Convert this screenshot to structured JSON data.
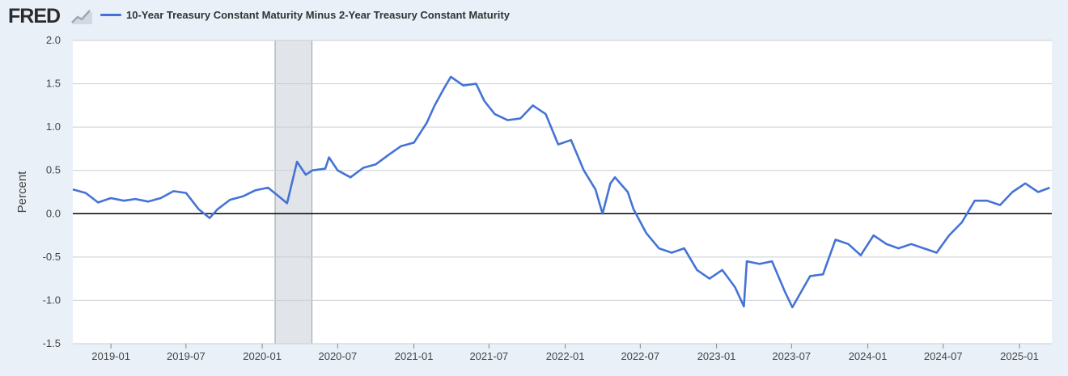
{
  "header": {
    "logo_text": "FRED",
    "logo_icon": "chart-line-icon"
  },
  "colors": {
    "series": "#4573d5",
    "background": "#e9f0f8",
    "plot": "#ffffff",
    "recession": "#e1e5ea",
    "zero_line": "#000000",
    "grid": "#c8cdd3"
  },
  "chart_data": {
    "type": "line",
    "title": "",
    "xlabel": "",
    "ylabel": "Percent",
    "ylim": [
      -1.5,
      2.0
    ],
    "xlim": [
      "2018-10-01",
      "2025-03-20"
    ],
    "yticks": [
      "2.0",
      "1.5",
      "1.0",
      "0.5",
      "0.0",
      "-0.5",
      "-1.0",
      "-1.5"
    ],
    "xticks": [
      "2019-01",
      "2019-07",
      "2020-01",
      "2020-07",
      "2021-01",
      "2021-07",
      "2022-01",
      "2022-07",
      "2023-01",
      "2023-07",
      "2024-01",
      "2024-07",
      "2025-01"
    ],
    "grid": true,
    "legend_position": "top-left",
    "recessions": [
      [
        "2020-02-01",
        "2020-04-30"
      ]
    ],
    "series": [
      {
        "name": "10-Year Treasury Constant Maturity Minus 2-Year Treasury Constant Maturity",
        "points": [
          [
            "2018-10-01",
            0.28
          ],
          [
            "2018-11-01",
            0.24
          ],
          [
            "2018-12-01",
            0.13
          ],
          [
            "2019-01-01",
            0.18
          ],
          [
            "2019-02-01",
            0.15
          ],
          [
            "2019-03-01",
            0.17
          ],
          [
            "2019-04-01",
            0.14
          ],
          [
            "2019-05-01",
            0.18
          ],
          [
            "2019-06-01",
            0.26
          ],
          [
            "2019-07-01",
            0.24
          ],
          [
            "2019-08-01",
            0.05
          ],
          [
            "2019-08-27",
            -0.05
          ],
          [
            "2019-09-15",
            0.05
          ],
          [
            "2019-10-15",
            0.16
          ],
          [
            "2019-11-15",
            0.2
          ],
          [
            "2019-12-15",
            0.27
          ],
          [
            "2020-01-15",
            0.3
          ],
          [
            "2020-02-15",
            0.18
          ],
          [
            "2020-03-01",
            0.12
          ],
          [
            "2020-03-15",
            0.4
          ],
          [
            "2020-03-25",
            0.6
          ],
          [
            "2020-04-15",
            0.45
          ],
          [
            "2020-05-01",
            0.5
          ],
          [
            "2020-06-01",
            0.52
          ],
          [
            "2020-06-10",
            0.65
          ],
          [
            "2020-07-01",
            0.5
          ],
          [
            "2020-08-01",
            0.42
          ],
          [
            "2020-09-01",
            0.53
          ],
          [
            "2020-10-01",
            0.57
          ],
          [
            "2020-11-01",
            0.68
          ],
          [
            "2020-12-01",
            0.78
          ],
          [
            "2021-01-01",
            0.82
          ],
          [
            "2021-02-01",
            1.05
          ],
          [
            "2021-02-20",
            1.25
          ],
          [
            "2021-03-15",
            1.45
          ],
          [
            "2021-03-31",
            1.58
          ],
          [
            "2021-04-30",
            1.48
          ],
          [
            "2021-05-31",
            1.5
          ],
          [
            "2021-06-20",
            1.3
          ],
          [
            "2021-07-15",
            1.15
          ],
          [
            "2021-08-15",
            1.08
          ],
          [
            "2021-09-15",
            1.1
          ],
          [
            "2021-10-15",
            1.25
          ],
          [
            "2021-11-15",
            1.15
          ],
          [
            "2021-12-15",
            0.8
          ],
          [
            "2022-01-15",
            0.85
          ],
          [
            "2022-02-15",
            0.5
          ],
          [
            "2022-03-15",
            0.28
          ],
          [
            "2022-04-01",
            0.0
          ],
          [
            "2022-04-20",
            0.35
          ],
          [
            "2022-05-01",
            0.42
          ],
          [
            "2022-06-01",
            0.25
          ],
          [
            "2022-06-15",
            0.05
          ],
          [
            "2022-07-15",
            -0.22
          ],
          [
            "2022-08-15",
            -0.4
          ],
          [
            "2022-09-15",
            -0.45
          ],
          [
            "2022-10-15",
            -0.4
          ],
          [
            "2022-11-15",
            -0.65
          ],
          [
            "2022-12-15",
            -0.75
          ],
          [
            "2023-01-15",
            -0.65
          ],
          [
            "2023-02-15",
            -0.85
          ],
          [
            "2023-03-08",
            -1.07
          ],
          [
            "2023-03-15",
            -0.55
          ],
          [
            "2023-04-15",
            -0.58
          ],
          [
            "2023-05-15",
            -0.55
          ],
          [
            "2023-06-15",
            -0.9
          ],
          [
            "2023-07-03",
            -1.08
          ],
          [
            "2023-08-15",
            -0.72
          ],
          [
            "2023-09-15",
            -0.7
          ],
          [
            "2023-10-15",
            -0.3
          ],
          [
            "2023-11-15",
            -0.35
          ],
          [
            "2023-12-15",
            -0.48
          ],
          [
            "2024-01-15",
            -0.25
          ],
          [
            "2024-02-15",
            -0.35
          ],
          [
            "2024-03-15",
            -0.4
          ],
          [
            "2024-04-15",
            -0.35
          ],
          [
            "2024-05-15",
            -0.4
          ],
          [
            "2024-06-15",
            -0.45
          ],
          [
            "2024-07-15",
            -0.25
          ],
          [
            "2024-08-15",
            -0.1
          ],
          [
            "2024-09-15",
            0.15
          ],
          [
            "2024-10-15",
            0.15
          ],
          [
            "2024-11-15",
            0.1
          ],
          [
            "2024-12-15",
            0.25
          ],
          [
            "2025-01-15",
            0.35
          ],
          [
            "2025-02-15",
            0.25
          ],
          [
            "2025-03-15",
            0.3
          ]
        ]
      }
    ]
  }
}
